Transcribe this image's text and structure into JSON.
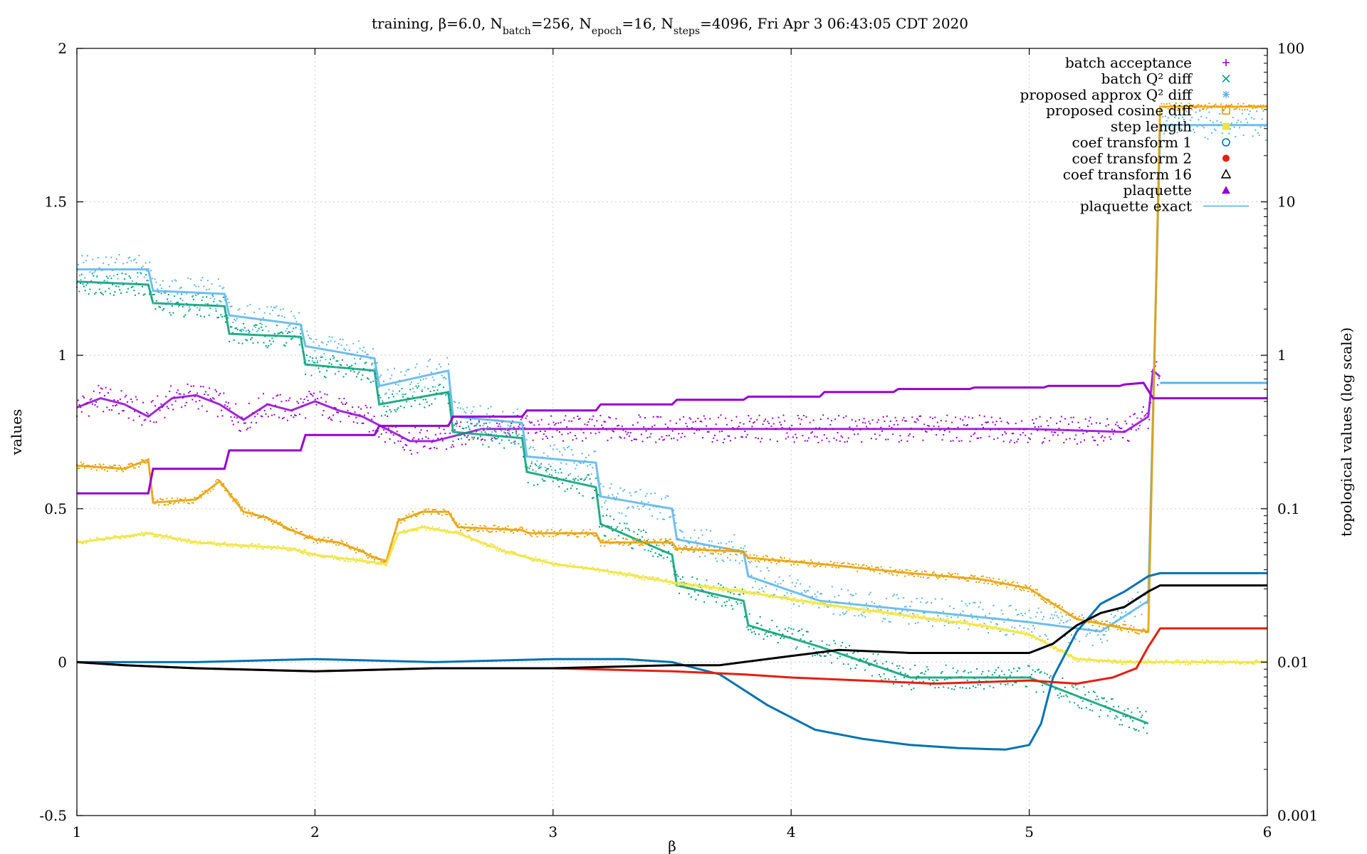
{
  "title": {
    "prefix": "training, β=6.0, N",
    "s1": "batch",
    "v1": "=256, N",
    "s2": "epoch",
    "v2": "=16, N",
    "s3": "steps",
    "v3": "=4096, Fri Apr  3 06:43:05 CDT 2020"
  },
  "chart_data": {
    "type": "scatter",
    "title": "training, β=6.0, Nbatch=256, Nepoch=16, Nsteps=4096, Fri Apr  3 06:43:05 CDT 2020",
    "xlabel": "β",
    "ylabel": "values",
    "y2label": "topological values (log scale)",
    "xlim": [
      1,
      6
    ],
    "ylim": [
      -0.5,
      2
    ],
    "y2lim": [
      0.001,
      100
    ],
    "y2scale": "log",
    "grid": true,
    "legend_position": "top-right",
    "x_ticks": [
      "1",
      "2",
      "3",
      "4",
      "5",
      "6"
    ],
    "y_ticks": [
      "-0.5",
      "0",
      "0.5",
      "1",
      "1.5",
      "2"
    ],
    "y2_ticks": [
      "0.001",
      "0.01",
      "0.1",
      "1",
      "10",
      "100"
    ],
    "series": [
      {
        "name": "batch acceptance",
        "color": "#9400d3",
        "marker": "plus",
        "x": [
          1.0,
          1.1,
          1.2,
          1.3,
          1.4,
          1.5,
          1.6,
          1.7,
          1.8,
          1.9,
          2.0,
          2.1,
          2.2,
          2.3,
          2.4,
          2.5,
          2.7,
          3.0,
          3.5,
          4.0,
          4.5,
          5.0,
          5.4,
          5.5,
          5.52,
          5.55
        ],
        "y": [
          0.83,
          0.86,
          0.84,
          0.8,
          0.86,
          0.87,
          0.84,
          0.79,
          0.84,
          0.82,
          0.85,
          0.82,
          0.8,
          0.76,
          0.72,
          0.72,
          0.76,
          0.76,
          0.76,
          0.76,
          0.76,
          0.76,
          0.75,
          0.8,
          0.95,
          0.93
        ]
      },
      {
        "name": "batch Q² diff",
        "color": "#009e73",
        "marker": "cross",
        "x": [
          1.0,
          1.3,
          1.32,
          1.62,
          1.64,
          1.94,
          1.96,
          2.25,
          2.27,
          2.56,
          2.58,
          2.87,
          2.89,
          3.18,
          3.2,
          3.5,
          3.52,
          3.8,
          3.82,
          4.12,
          4.5,
          5.0,
          5.5
        ],
        "y": [
          1.24,
          1.23,
          1.17,
          1.16,
          1.07,
          1.06,
          0.97,
          0.95,
          0.84,
          0.88,
          0.75,
          0.73,
          0.62,
          0.57,
          0.45,
          0.35,
          0.25,
          0.2,
          0.12,
          0.05,
          -0.05,
          -0.05,
          -0.2
        ]
      },
      {
        "name": "proposed approx Q² diff",
        "color": "#56b4e9",
        "marker": "star",
        "x": [
          1.0,
          1.3,
          1.32,
          1.62,
          1.64,
          1.94,
          1.96,
          2.25,
          2.27,
          2.56,
          2.58,
          2.87,
          2.89,
          3.18,
          3.2,
          3.5,
          3.52,
          3.8,
          3.82,
          4.12,
          4.5,
          5.0,
          5.3,
          5.5,
          5.55,
          6.0
        ],
        "y": [
          1.28,
          1.28,
          1.21,
          1.2,
          1.13,
          1.1,
          1.03,
          0.99,
          0.9,
          0.95,
          0.8,
          0.78,
          0.67,
          0.65,
          0.54,
          0.5,
          0.4,
          0.36,
          0.28,
          0.2,
          0.17,
          0.13,
          0.1,
          0.2,
          1.75,
          1.75
        ]
      },
      {
        "name": "proposed cosine diff",
        "color": "#e69f00",
        "marker": "box",
        "x": [
          1.0,
          1.2,
          1.3,
          1.32,
          1.5,
          1.6,
          1.7,
          1.8,
          1.9,
          2.0,
          2.1,
          2.2,
          2.25,
          2.3,
          2.35,
          2.45,
          2.56,
          2.6,
          2.87,
          2.9,
          3.18,
          3.2,
          3.5,
          3.52,
          3.8,
          3.82,
          4.12,
          4.5,
          4.8,
          5.0,
          5.1,
          5.2,
          5.4,
          5.5,
          5.55,
          6.0
        ],
        "y": [
          0.64,
          0.63,
          0.66,
          0.52,
          0.53,
          0.59,
          0.49,
          0.47,
          0.43,
          0.4,
          0.39,
          0.36,
          0.34,
          0.33,
          0.46,
          0.49,
          0.49,
          0.44,
          0.43,
          0.42,
          0.42,
          0.39,
          0.39,
          0.37,
          0.36,
          0.34,
          0.32,
          0.29,
          0.27,
          0.24,
          0.19,
          0.14,
          0.11,
          0.1,
          1.81,
          1.81
        ]
      },
      {
        "name": "step length",
        "color": "#f0e442",
        "marker": "fbox",
        "x": [
          1.0,
          1.2,
          1.3,
          1.5,
          1.7,
          1.9,
          2.0,
          2.2,
          2.3,
          2.35,
          2.45,
          2.6,
          2.8,
          3.0,
          3.2,
          3.5,
          3.8,
          4.12,
          4.5,
          4.8,
          5.0,
          5.1,
          5.2,
          5.4,
          5.55,
          6.0
        ],
        "y": [
          0.39,
          0.41,
          0.42,
          0.39,
          0.38,
          0.37,
          0.35,
          0.33,
          0.32,
          0.42,
          0.44,
          0.42,
          0.36,
          0.32,
          0.3,
          0.26,
          0.23,
          0.19,
          0.15,
          0.12,
          0.09,
          0.05,
          0.01,
          0.0,
          0.0,
          0.0
        ]
      },
      {
        "name": "coef transform 1",
        "color": "#0072b2",
        "marker": "circle",
        "x": [
          1.0,
          1.2,
          1.5,
          2.0,
          2.5,
          3.0,
          3.3,
          3.5,
          3.7,
          3.9,
          4.1,
          4.3,
          4.5,
          4.7,
          4.9,
          5.0,
          5.05,
          5.1,
          5.2,
          5.3,
          5.4,
          5.5,
          5.55,
          6.0
        ],
        "y": [
          0.0,
          0.0,
          0.0,
          0.01,
          0.0,
          0.01,
          0.01,
          0.0,
          -0.04,
          -0.14,
          -0.22,
          -0.25,
          -0.27,
          -0.28,
          -0.285,
          -0.27,
          -0.2,
          -0.05,
          0.1,
          0.19,
          0.23,
          0.28,
          0.29,
          0.29
        ]
      },
      {
        "name": "coef transform 2",
        "color": "#e51e10",
        "marker": "fcircle",
        "x": [
          1.0,
          1.2,
          1.5,
          2.0,
          2.5,
          3.0,
          3.5,
          3.8,
          4.0,
          4.3,
          4.6,
          5.0,
          5.2,
          5.35,
          5.45,
          5.5,
          5.55,
          6.0
        ],
        "y": [
          0.0,
          -0.01,
          -0.02,
          -0.03,
          -0.02,
          -0.02,
          -0.03,
          -0.04,
          -0.05,
          -0.06,
          -0.07,
          -0.06,
          -0.07,
          -0.05,
          -0.02,
          0.05,
          0.11,
          0.11
        ]
      },
      {
        "name": "coef transform 16",
        "color": "#000000",
        "marker": "triangle",
        "x": [
          1.0,
          1.2,
          1.5,
          2.0,
          2.5,
          3.0,
          3.5,
          3.7,
          4.0,
          4.2,
          4.5,
          4.8,
          5.0,
          5.1,
          5.2,
          5.3,
          5.4,
          5.5,
          5.55,
          6.0
        ],
        "y": [
          0.0,
          -0.01,
          -0.02,
          -0.03,
          -0.02,
          -0.02,
          -0.01,
          -0.01,
          0.02,
          0.04,
          0.03,
          0.03,
          0.03,
          0.06,
          0.12,
          0.16,
          0.18,
          0.23,
          0.25,
          0.25
        ]
      },
      {
        "name": "plaquette",
        "color": "#9400d3",
        "marker": "ftriangle",
        "x": [
          1.0,
          1.3,
          1.32,
          1.62,
          1.64,
          1.94,
          1.96,
          2.25,
          2.27,
          2.56,
          2.58,
          2.87,
          2.89,
          3.18,
          3.2,
          3.5,
          3.52,
          3.8,
          3.82,
          4.12,
          4.14,
          4.43,
          4.45,
          4.75,
          4.77,
          5.06,
          5.08,
          5.38,
          5.4,
          5.48,
          5.52,
          5.55,
          6.0
        ],
        "y": [
          0.55,
          0.55,
          0.63,
          0.63,
          0.69,
          0.69,
          0.74,
          0.74,
          0.77,
          0.77,
          0.8,
          0.8,
          0.82,
          0.82,
          0.84,
          0.84,
          0.855,
          0.855,
          0.865,
          0.865,
          0.88,
          0.88,
          0.89,
          0.89,
          0.895,
          0.895,
          0.9,
          0.9,
          0.905,
          0.91,
          0.86,
          0.86,
          0.86
        ]
      },
      {
        "name": "plaquette exact",
        "color": "#56b4e9",
        "marker": "line",
        "x": [
          5.55,
          6.0
        ],
        "y": [
          0.91,
          0.91
        ]
      }
    ]
  }
}
